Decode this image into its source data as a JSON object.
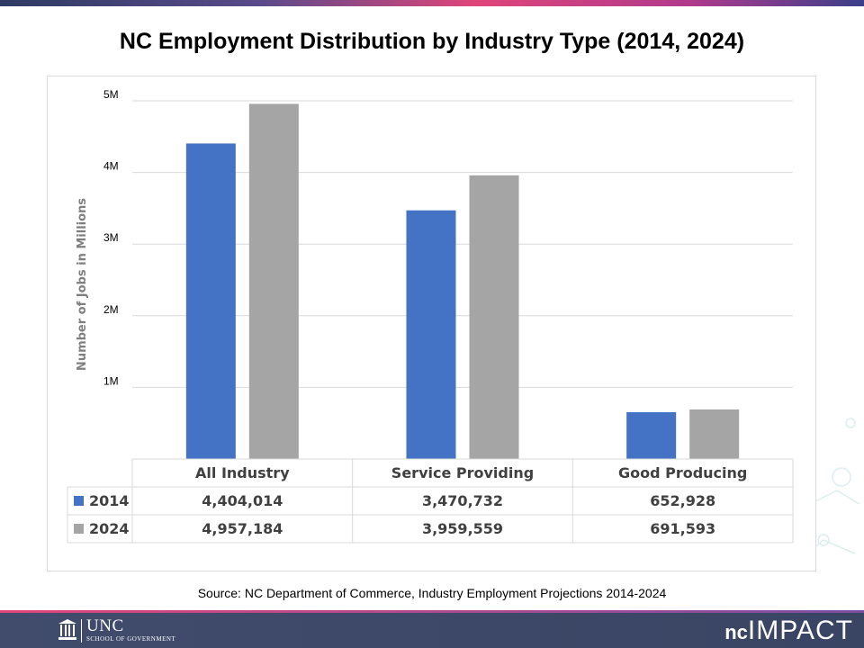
{
  "slide": {
    "title": "NC Employment Distribution by Industry Type (2014, 2024)",
    "source": "Source: NC Department of Commerce, Industry  Employment Projections 2014-2024"
  },
  "footer": {
    "unc_name": "UNC",
    "unc_sub": "SCHOOL OF GOVERNMENT",
    "brand_prefix": "nc",
    "brand_name": "IMPACT"
  },
  "colors": {
    "series_2014": "#4472c4",
    "series_2024": "#a5a5a5",
    "grid": "#d9d9d9",
    "footer_bg": "#414c6d"
  },
  "chart_data": {
    "type": "bar",
    "title": "NC Employment Distribution by Industry Type (2014, 2024)",
    "ylabel": "Number of Jobs in Millions",
    "xlabel": "",
    "ylim": [
      0,
      5000000
    ],
    "yticks": [
      1000000,
      2000000,
      3000000,
      4000000,
      5000000
    ],
    "ytick_labels": [
      "1M",
      "2M",
      "3M",
      "4M",
      "5M"
    ],
    "categories": [
      "All Industry",
      "Service Providing",
      "Good Producing"
    ],
    "series": [
      {
        "name": "2014",
        "values": [
          4404014,
          3470732,
          652928
        ],
        "labels": [
          "4,404,014",
          "3,470,732",
          "652,928"
        ]
      },
      {
        "name": "2024",
        "values": [
          4957184,
          3959559,
          691593
        ],
        "labels": [
          "4,957,184",
          "3,959,559",
          "691,593"
        ]
      }
    ],
    "grid": true,
    "legend": "data-table"
  }
}
